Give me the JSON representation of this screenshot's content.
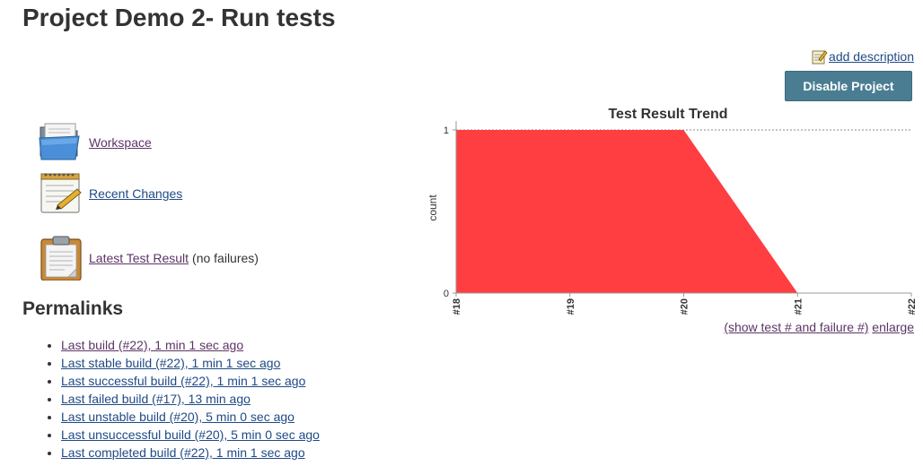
{
  "header": {
    "title": "Project Demo 2- Run tests"
  },
  "actions": {
    "add_description": "add description",
    "disable_project": "Disable Project"
  },
  "tasks": [
    {
      "label": "Workspace",
      "icon": "folder-icon"
    },
    {
      "label": "Recent Changes",
      "icon": "notepad-icon"
    },
    {
      "label": "Latest Test Result",
      "icon": "clipboard-icon",
      "note": "(no failures)"
    }
  ],
  "permalinks": {
    "heading": "Permalinks",
    "items": [
      "Last build (#22), 1 min 1 sec ago",
      "Last stable build (#22), 1 min 1 sec ago",
      "Last successful build (#22), 1 min 1 sec ago",
      "Last failed build (#17), 13 min ago",
      "Last unstable build (#20), 5 min 0 sec ago",
      "Last unsuccessful build (#20), 5 min 0 sec ago",
      "Last completed build (#22), 1 min 1 sec ago"
    ]
  },
  "chart_links": {
    "show_test": "(show test # and failure #)",
    "enlarge": "enlarge"
  },
  "chart_data": {
    "type": "area",
    "title": "Test Result Trend",
    "xlabel": "",
    "ylabel": "count",
    "categories": [
      "#18",
      "#19",
      "#20",
      "#21",
      "#22"
    ],
    "series": [
      {
        "values": [
          1,
          1,
          1,
          0,
          0
        ],
        "color": "#ff3e41"
      }
    ],
    "ylim": [
      0,
      1
    ],
    "yticks": [
      0,
      1
    ],
    "grid": "dashed line at y=1",
    "legend": "none"
  }
}
